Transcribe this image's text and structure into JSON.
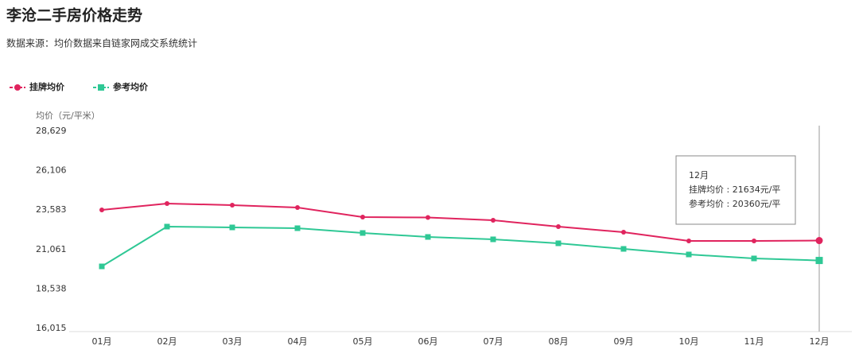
{
  "chart_data": {
    "type": "line",
    "title": "李沧二手房价格走势",
    "subtitle": "数据来源：均价数据来自链家网成交系统统计",
    "y_axis_title": "均价（元/平米）",
    "categories": [
      "01月",
      "02月",
      "03月",
      "04月",
      "05月",
      "06月",
      "07月",
      "08月",
      "09月",
      "10月",
      "11月",
      "12月"
    ],
    "series": [
      {
        "name": "挂牌均价",
        "color": "#e0245e",
        "marker": "circle",
        "values": [
          23594,
          24001,
          23900,
          23747,
          23136,
          23110,
          22933,
          22526,
          22170,
          21610,
          21610,
          21634
        ]
      },
      {
        "name": "参考均价",
        "color": "#2fc895",
        "marker": "square",
        "values": [
          19982,
          22526,
          22475,
          22424,
          22119,
          21865,
          21712,
          21458,
          21101,
          20745,
          20491,
          20360
        ]
      }
    ],
    "ylim": [
      16015,
      28629
    ],
    "yticks": [
      {
        "value": 16015,
        "label": "16,015"
      },
      {
        "value": 18538,
        "label": "18,538"
      },
      {
        "value": 21061,
        "label": "21,061"
      },
      {
        "value": 23583,
        "label": "23,583"
      },
      {
        "value": 26106,
        "label": "26,106"
      },
      {
        "value": 28629,
        "label": "28,629"
      }
    ],
    "legend": "top-left",
    "tooltip": {
      "lines": [
        "挂牌均价 : 21634元/平",
        "参考均价 : 20360元/平"
      ]
    }
  }
}
